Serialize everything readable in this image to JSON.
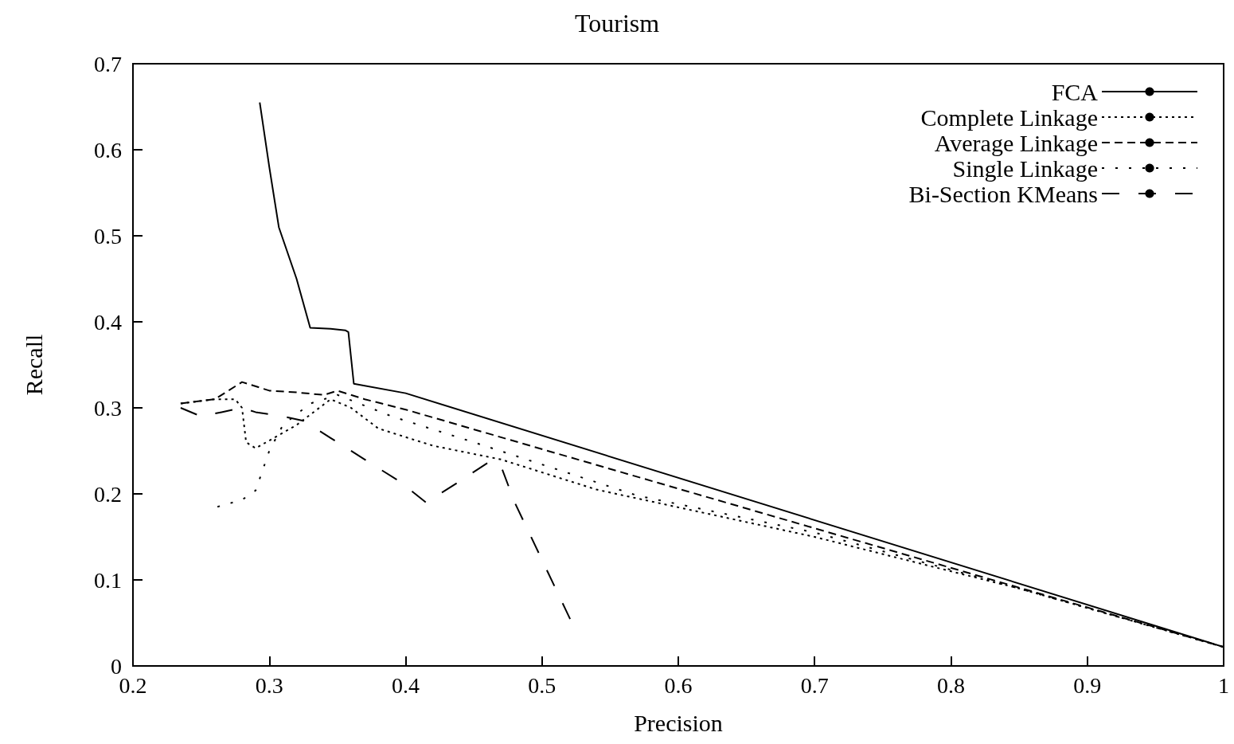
{
  "chart_data": {
    "type": "line",
    "title": "Tourism",
    "xlabel": "Precision",
    "ylabel": "Recall",
    "xlim": [
      0.2,
      1
    ],
    "xticks": [
      0.2,
      0.3,
      0.4,
      0.5,
      0.6,
      0.7,
      0.8,
      0.9,
      1
    ],
    "ylim": [
      0,
      0.7
    ],
    "yticks": [
      0,
      0.1,
      0.2,
      0.3,
      0.4,
      0.5,
      0.6,
      0.7
    ],
    "legend": "top right",
    "grid": false,
    "marker": "none",
    "series": [
      {
        "name": "FCA",
        "color": "#000000",
        "line_style": "solid",
        "x": [
          0.293,
          0.3,
          0.307,
          0.32,
          0.33,
          0.345,
          0.356,
          0.358,
          0.362,
          0.4,
          1
        ],
        "values": [
          0.655,
          0.58,
          0.51,
          0.45,
          0.393,
          0.392,
          0.39,
          0.388,
          0.328,
          0.317,
          0.022
        ]
      },
      {
        "name": "Complete Linkage",
        "color": "#000000",
        "line_style": "dotted",
        "x": [
          0.235,
          0.26,
          0.275,
          0.28,
          0.283,
          0.29,
          0.3,
          0.32,
          0.345,
          0.36,
          0.38,
          0.42,
          0.47,
          0.54,
          0.7,
          0.85,
          1
        ],
        "values": [
          0.305,
          0.31,
          0.31,
          0.3,
          0.26,
          0.253,
          0.262,
          0.28,
          0.31,
          0.3,
          0.276,
          0.256,
          0.24,
          0.205,
          0.15,
          0.09,
          0.022
        ]
      },
      {
        "name": "Average Linkage",
        "color": "#000000",
        "line_style": "dashed",
        "x": [
          0.235,
          0.26,
          0.28,
          0.3,
          0.32,
          0.34,
          0.35,
          0.37,
          0.4,
          1
        ],
        "values": [
          0.305,
          0.31,
          0.33,
          0.32,
          0.318,
          0.315,
          0.32,
          0.31,
          0.298,
          0.022
        ]
      },
      {
        "name": "Single Linkage",
        "color": "#000000",
        "line_style": "dotted",
        "x": [
          0.262,
          0.28,
          0.29,
          0.295,
          0.3,
          0.31,
          0.33,
          0.35,
          0.39,
          0.45,
          0.57,
          0.7,
          0.85,
          1
        ],
        "values": [
          0.185,
          0.193,
          0.204,
          0.227,
          0.25,
          0.28,
          0.305,
          0.315,
          0.29,
          0.26,
          0.198,
          0.155,
          0.09,
          0.022
        ]
      },
      {
        "name": "Bi-Section KMeans",
        "color": "#000000",
        "line_style": "dashed",
        "x": [
          0.235,
          0.25,
          0.265,
          0.28,
          0.29,
          0.31,
          0.325,
          0.345,
          0.37,
          0.395,
          0.415,
          0.44,
          0.462,
          0.47,
          0.48,
          0.522
        ],
        "values": [
          0.3,
          0.29,
          0.295,
          0.3,
          0.295,
          0.29,
          0.285,
          0.265,
          0.24,
          0.215,
          0.19,
          0.215,
          0.238,
          0.232,
          0.19,
          0.05
        ]
      }
    ]
  }
}
